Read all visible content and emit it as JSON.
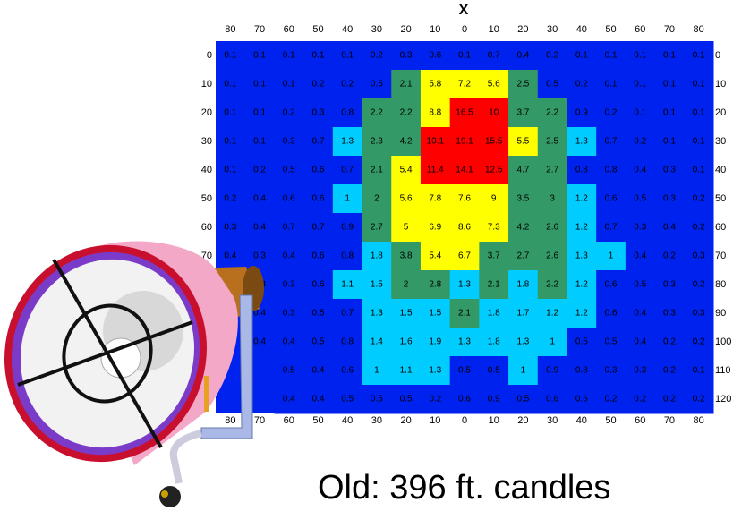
{
  "chart_data": {
    "type": "heatmap",
    "title": "X",
    "x_categories": [
      "80",
      "70",
      "60",
      "50",
      "40",
      "30",
      "20",
      "10",
      "0",
      "10",
      "20",
      "30",
      "40",
      "50",
      "60",
      "70",
      "80"
    ],
    "y_categories": [
      "0",
      "10",
      "20",
      "30",
      "40",
      "50",
      "60",
      "70",
      "80",
      "90",
      "100",
      "110",
      "120"
    ],
    "values": [
      [
        0.1,
        0.1,
        0.1,
        0.1,
        0.1,
        0.2,
        0.3,
        0.6,
        0.1,
        0.7,
        0.4,
        0.2,
        0.1,
        0.1,
        0.1,
        0.1,
        0.1
      ],
      [
        0.1,
        0.1,
        0.1,
        0.2,
        0.2,
        0.5,
        2.1,
        5.8,
        7.2,
        5.6,
        2.5,
        0.5,
        0.2,
        0.1,
        0.1,
        0.1,
        0.1
      ],
      [
        0.1,
        0.1,
        0.2,
        0.3,
        0.8,
        2.2,
        2.2,
        8.8,
        16.5,
        10,
        3.7,
        2.2,
        0.9,
        0.2,
        0.1,
        0.1,
        0.1
      ],
      [
        0.1,
        0.1,
        0.3,
        0.7,
        1.3,
        2.3,
        4.2,
        10.1,
        19.1,
        15.5,
        5.5,
        2.5,
        1.3,
        0.7,
        0.2,
        0.1,
        0.1
      ],
      [
        0.1,
        0.2,
        0.5,
        0.6,
        0.7,
        2.1,
        5.4,
        11.4,
        14.1,
        12.5,
        4.7,
        2.7,
        0.8,
        0.8,
        0.4,
        0.3,
        0.1
      ],
      [
        0.2,
        0.4,
        0.6,
        0.6,
        1,
        2,
        5.6,
        7.8,
        7.6,
        9,
        3.5,
        3,
        1.2,
        0.6,
        0.5,
        0.3,
        0.2
      ],
      [
        0.3,
        0.4,
        0.7,
        0.7,
        0.9,
        2.7,
        5,
        6.9,
        8.6,
        7.3,
        4.2,
        2.6,
        1.2,
        0.7,
        0.3,
        0.4,
        0.2
      ],
      [
        0.4,
        0.3,
        0.4,
        0.6,
        0.8,
        1.8,
        3.8,
        5.4,
        6.7,
        3.7,
        2.7,
        2.6,
        1.3,
        1,
        0.4,
        0.2,
        0.3
      ],
      [
        null,
        0.3,
        0.3,
        0.6,
        1.1,
        1.5,
        2,
        2.8,
        1.3,
        2.1,
        1.8,
        2.2,
        1.2,
        0.6,
        0.5,
        0.3,
        0.2
      ],
      [
        null,
        0.4,
        0.3,
        0.5,
        0.7,
        1.3,
        1.5,
        1.5,
        2.1,
        1.8,
        1.7,
        1.2,
        1.2,
        0.6,
        0.4,
        0.3,
        0.3
      ],
      [
        null,
        0.4,
        0.4,
        0.5,
        0.8,
        1.4,
        1.6,
        1.9,
        1.3,
        1.8,
        1.3,
        1,
        0.5,
        0.5,
        0.4,
        0.2,
        0.2
      ],
      [
        null,
        null,
        0.5,
        0.4,
        0.6,
        1,
        1.1,
        1.3,
        0.5,
        0.5,
        1,
        0.9,
        0.8,
        0.3,
        0.3,
        0.2,
        0.1
      ],
      [
        null,
        null,
        0.4,
        0.4,
        0.5,
        0.5,
        0.5,
        0.2,
        0.6,
        0.9,
        0.5,
        0.6,
        0.6,
        0.2,
        0.2,
        0.2,
        0.2
      ]
    ],
    "color_thresholds": [
      1,
      2,
      5,
      10
    ],
    "colors": [
      "#0022ee",
      "#00ccff",
      "#339966",
      "#ffff00",
      "#ff0000"
    ],
    "annotation": "Old: 396 ft. candles"
  }
}
